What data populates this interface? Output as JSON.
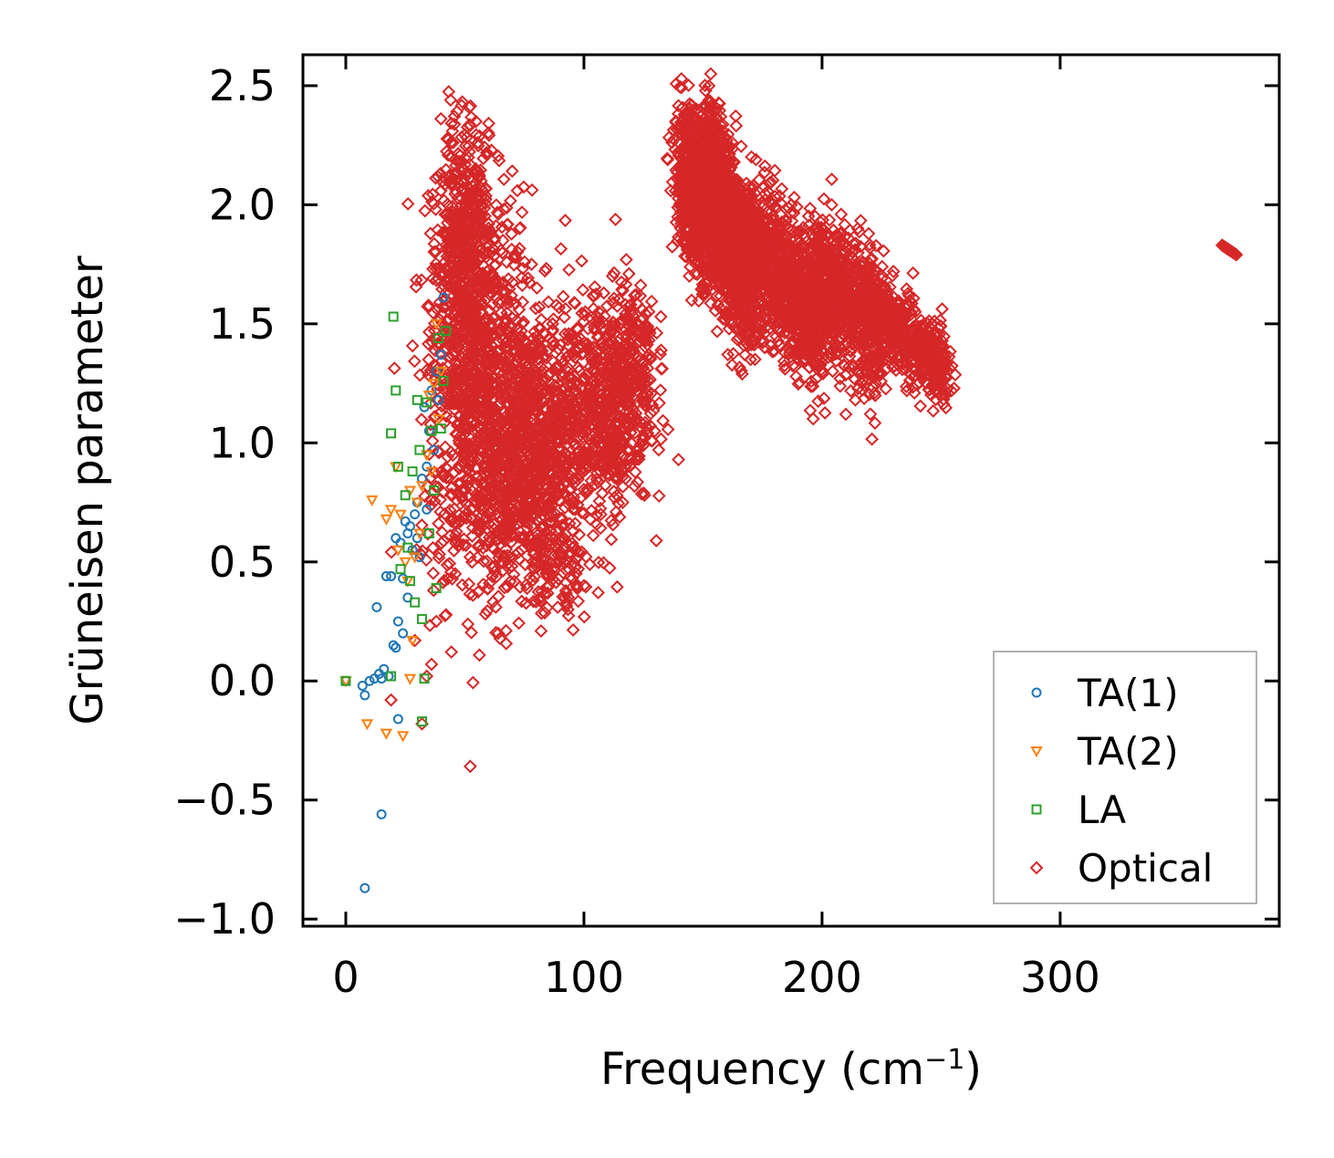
{
  "chart_data": {
    "type": "scatter",
    "title": "",
    "xlabel": "Frequency (cm",
    "xlabel_sup": "−1",
    "xlabel_close": ")",
    "ylabel": "Grüneisen parameter",
    "xlim": [
      -18,
      392
    ],
    "ylim": [
      -1.03,
      2.63
    ],
    "xticks": [
      0,
      100,
      200,
      300
    ],
    "xtick_labels": [
      "0",
      "100",
      "200",
      "300"
    ],
    "yticks": [
      -1.0,
      -0.5,
      0.0,
      0.5,
      1.0,
      1.5,
      2.0,
      2.5
    ],
    "ytick_labels": [
      "−1.0",
      "−0.5",
      "0.0",
      "0.5",
      "1.0",
      "1.5",
      "2.0",
      "2.5"
    ],
    "grid": false,
    "legend_position": "lower-right",
    "series": [
      {
        "name": "TA(1)",
        "marker": "circle",
        "color": "#1f77b4",
        "points": [
          [
            0,
            0
          ],
          [
            7,
            -0.02
          ],
          [
            8,
            -0.06
          ],
          [
            8,
            -0.87
          ],
          [
            10,
            0.0
          ],
          [
            12,
            0.01
          ],
          [
            13,
            0.31
          ],
          [
            14,
            0.03
          ],
          [
            15,
            -0.56
          ],
          [
            15,
            0.01
          ],
          [
            16,
            0.05
          ],
          [
            17,
            0.44
          ],
          [
            18,
            0.02
          ],
          [
            19,
            0.44
          ],
          [
            20,
            0.15
          ],
          [
            21,
            0.14
          ],
          [
            21,
            0.6
          ],
          [
            22,
            -0.16
          ],
          [
            22,
            0.25
          ],
          [
            23,
            0.58
          ],
          [
            24,
            0.2
          ],
          [
            25,
            0.67
          ],
          [
            26,
            0.35
          ],
          [
            27,
            0.65
          ],
          [
            28,
            0.55
          ],
          [
            29,
            0.7
          ],
          [
            30,
            0.75
          ],
          [
            31,
            0.52
          ],
          [
            32,
            0.85
          ],
          [
            33,
            1.15
          ],
          [
            34,
            0.9
          ],
          [
            35,
            1.05
          ],
          [
            36,
            1.22
          ],
          [
            37,
            0.97
          ],
          [
            38,
            1.3
          ],
          [
            39,
            1.18
          ],
          [
            40,
            1.37
          ],
          [
            41,
            1.61
          ],
          [
            24,
            0.43
          ],
          [
            26,
            0.62
          ],
          [
            30,
            0.6
          ],
          [
            34,
            0.72
          ]
        ]
      },
      {
        "name": "TA(2)",
        "marker": "triangle-down",
        "color": "#ff7f0e",
        "points": [
          [
            0,
            0
          ],
          [
            9,
            -0.18
          ],
          [
            11,
            0.76
          ],
          [
            17,
            -0.22
          ],
          [
            17,
            0.68
          ],
          [
            19,
            0.72
          ],
          [
            21,
            0.9
          ],
          [
            23,
            0.7
          ],
          [
            24,
            -0.23
          ],
          [
            25,
            0.5
          ],
          [
            26,
            0.42
          ],
          [
            27,
            0.01
          ],
          [
            28,
            0.17
          ],
          [
            29,
            0.52
          ],
          [
            30,
            0.75
          ],
          [
            31,
            0.62
          ],
          [
            32,
            0.82
          ],
          [
            34,
            0.95
          ],
          [
            35,
            1.2
          ],
          [
            36,
            0.88
          ],
          [
            37,
            1.25
          ],
          [
            38,
            1.5
          ],
          [
            39,
            1.1
          ],
          [
            40,
            1.3
          ],
          [
            22,
            0.55
          ],
          [
            27,
            0.8
          ]
        ]
      },
      {
        "name": "LA",
        "marker": "square",
        "color": "#2ca02c",
        "points": [
          [
            0,
            0
          ],
          [
            19,
            1.04
          ],
          [
            19,
            0.02
          ],
          [
            20,
            1.53
          ],
          [
            21,
            1.22
          ],
          [
            22,
            0.9
          ],
          [
            23,
            0.47
          ],
          [
            25,
            0.78
          ],
          [
            27,
            0.42
          ],
          [
            29,
            0.33
          ],
          [
            31,
            0.97
          ],
          [
            32,
            0.26
          ],
          [
            33,
            0.01
          ],
          [
            32,
            -0.17
          ],
          [
            34,
            1.17
          ],
          [
            35,
            0.62
          ],
          [
            36,
            1.05
          ],
          [
            37,
            0.8
          ],
          [
            38,
            0.39
          ],
          [
            39,
            1.44
          ],
          [
            40,
            1.06
          ],
          [
            41,
            1.26
          ],
          [
            42,
            1.47
          ],
          [
            30,
            1.18
          ],
          [
            28,
            0.88
          ],
          [
            26,
            0.56
          ]
        ]
      },
      {
        "name": "Optical",
        "marker": "diamond",
        "color": "#d62728",
        "points": [
          [
            44,
            2.44
          ],
          [
            32,
            -0.18
          ],
          [
            29,
            0.17
          ],
          [
            34,
            0.02
          ],
          [
            36,
            0.07
          ],
          [
            38,
            0.25
          ],
          [
            46,
            0.45
          ],
          [
            19,
            -0.08
          ]
        ],
        "clusters": [
          {
            "cx": 47,
            "cy": 1.6,
            "sx": 6,
            "sy": 0.35,
            "n": 420
          },
          {
            "cx": 58,
            "cy": 1.25,
            "sx": 10,
            "sy": 0.4,
            "n": 700
          },
          {
            "cx": 80,
            "cy": 1.0,
            "sx": 12,
            "sy": 0.28,
            "n": 900
          },
          {
            "cx": 110,
            "cy": 1.15,
            "sx": 9,
            "sy": 0.22,
            "n": 520
          },
          {
            "cx": 120,
            "cy": 1.4,
            "sx": 5,
            "sy": 0.15,
            "n": 150
          },
          {
            "cx": 62,
            "cy": 0.7,
            "sx": 15,
            "sy": 0.18,
            "n": 160
          },
          {
            "cx": 88,
            "cy": 0.45,
            "sx": 8,
            "sy": 0.12,
            "n": 90
          },
          {
            "cx": 52,
            "cy": 2.05,
            "sx": 6,
            "sy": 0.15,
            "n": 120
          }
        ],
        "bands": [
          {
            "x0": 140,
            "y0": 2.15,
            "x1": 168,
            "y1": 1.72,
            "width": 0.16,
            "n": 1400
          },
          {
            "x0": 152,
            "y0": 2.35,
            "x1": 172,
            "y1": 1.55,
            "width": 0.12,
            "n": 500
          },
          {
            "x0": 168,
            "y0": 1.85,
            "x1": 200,
            "y1": 1.5,
            "width": 0.15,
            "n": 900
          },
          {
            "x0": 196,
            "y0": 1.72,
            "x1": 225,
            "y1": 1.45,
            "width": 0.14,
            "n": 700
          },
          {
            "x0": 222,
            "y0": 1.55,
            "x1": 253,
            "y1": 1.3,
            "width": 0.08,
            "n": 450
          }
        ],
        "tail": {
          "x0": 368,
          "y0": 1.83,
          "x1": 374,
          "y1": 1.79,
          "n": 12
        },
        "outliers": [
          [
            170,
            1.35
          ],
          [
            176,
            1.4
          ],
          [
            210,
            1.12
          ],
          [
            214,
            1.18
          ],
          [
            217,
            1.25
          ],
          [
            208,
            1.96
          ],
          [
            215,
            1.9
          ],
          [
            230,
            1.72
          ],
          [
            240,
            1.4
          ],
          [
            245,
            1.33
          ],
          [
            63,
            0.31
          ],
          [
            64,
            0.2
          ],
          [
            82,
            0.21
          ],
          [
            81,
            0.34
          ],
          [
            92,
            0.35
          ],
          [
            60,
            1.92
          ],
          [
            66,
            1.85
          ],
          [
            73,
            1.9
          ],
          [
            78,
            1.75
          ],
          [
            97,
            1.48
          ],
          [
            104,
            1.62
          ],
          [
            112,
            1.7
          ]
        ]
      }
    ]
  }
}
